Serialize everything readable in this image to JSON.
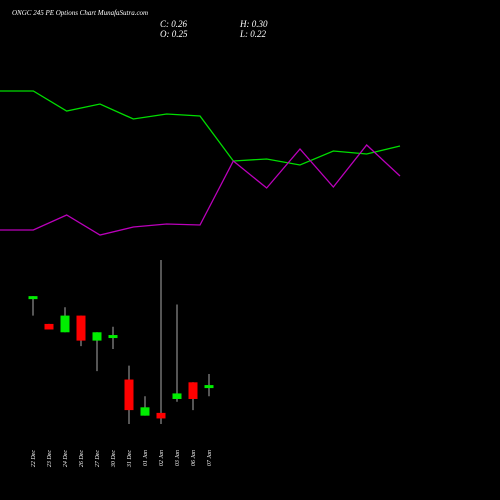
{
  "chart_data": [
    {
      "type": "line",
      "x": [
        0,
        1,
        2,
        3,
        4,
        5,
        6,
        7,
        8,
        9,
        10,
        11,
        12
      ],
      "series": [
        {
          "color": "#00dd00",
          "values": [
            159,
            159,
            139,
            146,
            131,
            136,
            134,
            89,
            91,
            85,
            99,
            96,
            104
          ]
        },
        {
          "color": "#bb00bb",
          "values": [
            20,
            20,
            35,
            15,
            23,
            26,
            25,
            89,
            62,
            101,
            63,
            105,
            74
          ]
        }
      ]
    },
    {
      "type": "candlestick",
      "title": "ONGC 245 PE Options Chart MunafaSutra.com",
      "close_label": "C: 0.26",
      "high_label": "H: 0.30",
      "open_label": "O: 0.25",
      "low_label": "L: 0.22",
      "categories": [
        "22 Dec",
        "23 Dec",
        "24 Dec",
        "26 Dec",
        "27 Dec",
        "30 Dec",
        "31 Dec",
        "01 Jan",
        "02 Jan",
        "03 Jan",
        "06 Jan",
        "07 Jan"
      ],
      "open": [
        0.57,
        0.48,
        0.45,
        0.51,
        0.42,
        0.43,
        0.28,
        0.15,
        0.16,
        0.21,
        0.27,
        0.25
      ],
      "high": [
        0.58,
        0.48,
        0.54,
        0.51,
        0.45,
        0.47,
        0.33,
        0.22,
        0.71,
        0.55,
        0.27,
        0.3
      ],
      "low": [
        0.51,
        0.46,
        0.45,
        0.4,
        0.31,
        0.39,
        0.12,
        0.15,
        0.12,
        0.2,
        0.17,
        0.22
      ],
      "close": [
        0.58,
        0.46,
        0.51,
        0.42,
        0.45,
        0.44,
        0.17,
        0.18,
        0.14,
        0.23,
        0.21,
        0.26
      ],
      "up_color": "#00ee00",
      "down_color": "#ff0000",
      "wick_color": "#aaaaaa"
    }
  ]
}
